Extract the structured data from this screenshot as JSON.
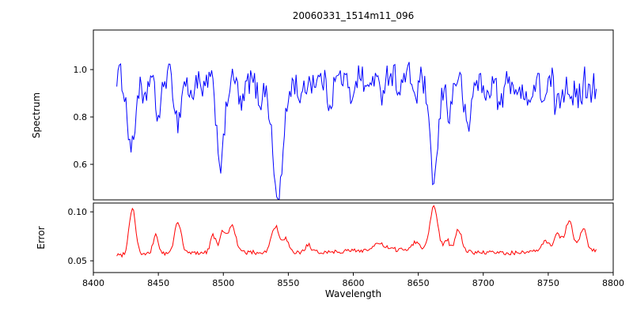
{
  "chart_data": {
    "type": "line",
    "title": "20060331_1514m11_096",
    "xlabel": "Wavelength",
    "xlim": [
      8400,
      8800
    ],
    "x_ticks": [
      8400,
      8450,
      8500,
      8550,
      8600,
      8650,
      8700,
      8750,
      8800
    ],
    "x_tick_labels": [
      "8400",
      "8450",
      "8500",
      "8550",
      "8600",
      "8650",
      "8700",
      "8750",
      "8800"
    ],
    "legend": "none",
    "grid": false,
    "panels": [
      {
        "name": "spectrum",
        "ylabel": "Spectrum",
        "color": "#0000ff",
        "ylim": [
          0.45,
          1.167
        ],
        "y_ticks": [
          0.6,
          0.8,
          1.0
        ],
        "y_tick_labels": [
          "0.6",
          "0.8",
          "1.0"
        ],
        "x_start": 8418,
        "x_end": 8787,
        "baseline": 0.965,
        "wave_amp": 0.018,
        "wave_div": 30,
        "noise": 0.055,
        "right_noise_boost": 1.5,
        "right_slope_start": 8750,
        "right_slope": 0.0008,
        "seed": 1234,
        "lines": [
          {
            "center": 8426,
            "depth": 0.1,
            "width": 2.0
          },
          {
            "center": 8430,
            "depth": 0.3,
            "width": 2.5
          },
          {
            "center": 8439,
            "depth": 0.14,
            "width": 2.0
          },
          {
            "center": 8450,
            "depth": 0.18,
            "width": 2.5
          },
          {
            "center": 8465,
            "depth": 0.2,
            "width": 2.5
          },
          {
            "center": 8475,
            "depth": 0.1,
            "width": 2.0
          },
          {
            "center": 8484,
            "depth": 0.08,
            "width": 2.0
          },
          {
            "center": 8498,
            "depth": 0.36,
            "width": 3.0
          },
          {
            "center": 8514,
            "depth": 0.12,
            "width": 2.0
          },
          {
            "center": 8528,
            "depth": 0.08,
            "width": 2.0
          },
          {
            "center": 8542,
            "depth": 0.5,
            "width": 4.0
          },
          {
            "center": 8560,
            "depth": 0.08,
            "width": 2.0
          },
          {
            "center": 8582,
            "depth": 0.1,
            "width": 2.0
          },
          {
            "center": 8598,
            "depth": 0.09,
            "width": 2.0
          },
          {
            "center": 8611,
            "depth": 0.07,
            "width": 2.0
          },
          {
            "center": 8621,
            "depth": 0.09,
            "width": 2.0
          },
          {
            "center": 8636,
            "depth": 0.07,
            "width": 2.0
          },
          {
            "center": 8648,
            "depth": 0.1,
            "width": 2.0
          },
          {
            "center": 8662,
            "depth": 0.44,
            "width": 3.5
          },
          {
            "center": 8674,
            "depth": 0.16,
            "width": 2.0
          },
          {
            "center": 8688,
            "depth": 0.22,
            "width": 2.5
          },
          {
            "center": 8702,
            "depth": 0.08,
            "width": 2.0
          },
          {
            "center": 8713,
            "depth": 0.11,
            "width": 2.0
          },
          {
            "center": 8728,
            "depth": 0.07,
            "width": 2.0
          },
          {
            "center": 8736,
            "depth": 0.09,
            "width": 2.0
          },
          {
            "center": 8747,
            "depth": 0.08,
            "width": 2.0
          },
          {
            "center": 8757,
            "depth": 0.12,
            "width": 2.0
          },
          {
            "center": 8772,
            "depth": 0.1,
            "width": 2.0
          }
        ]
      },
      {
        "name": "error",
        "ylabel": "Error",
        "color": "#ff0000",
        "ylim": [
          0.038,
          0.109
        ],
        "y_ticks": [
          0.05,
          0.1
        ],
        "y_tick_labels": [
          "0.05",
          "0.10"
        ],
        "x_start": 8418,
        "x_end": 8787,
        "baseline": 0.0555,
        "noise": 0.0022,
        "seed": 99,
        "bumps": [
          {
            "center": 8500,
            "height": 0.003,
            "width": 40
          },
          {
            "center": 8635,
            "height": 0.006,
            "width": 50
          },
          {
            "center": 8772,
            "height": 0.005,
            "width": 30
          }
        ],
        "peaks": [
          {
            "center": 8430,
            "height": 0.048,
            "width": 2.5
          },
          {
            "center": 8448,
            "height": 0.02,
            "width": 2.0
          },
          {
            "center": 8465,
            "height": 0.033,
            "width": 2.5
          },
          {
            "center": 8492,
            "height": 0.018,
            "width": 2.0
          },
          {
            "center": 8500,
            "height": 0.022,
            "width": 2.5
          },
          {
            "center": 8507,
            "height": 0.028,
            "width": 2.5
          },
          {
            "center": 8540,
            "height": 0.027,
            "width": 3.0
          },
          {
            "center": 8548,
            "height": 0.014,
            "width": 2.0
          },
          {
            "center": 8565,
            "height": 0.008,
            "width": 2.0
          },
          {
            "center": 8620,
            "height": 0.006,
            "width": 4.0
          },
          {
            "center": 8648,
            "height": 0.008,
            "width": 3.0
          },
          {
            "center": 8662,
            "height": 0.046,
            "width": 3.0
          },
          {
            "center": 8672,
            "height": 0.012,
            "width": 2.0
          },
          {
            "center": 8681,
            "height": 0.022,
            "width": 2.5
          },
          {
            "center": 8748,
            "height": 0.01,
            "width": 3.0
          },
          {
            "center": 8757,
            "height": 0.018,
            "width": 2.5
          },
          {
            "center": 8766,
            "height": 0.03,
            "width": 3.0
          },
          {
            "center": 8777,
            "height": 0.022,
            "width": 2.5
          }
        ]
      }
    ],
    "colors": {
      "spectrum_line": "#0000ff",
      "error_line": "#ff0000",
      "axis": "#000000",
      "background": "#ffffff"
    }
  }
}
